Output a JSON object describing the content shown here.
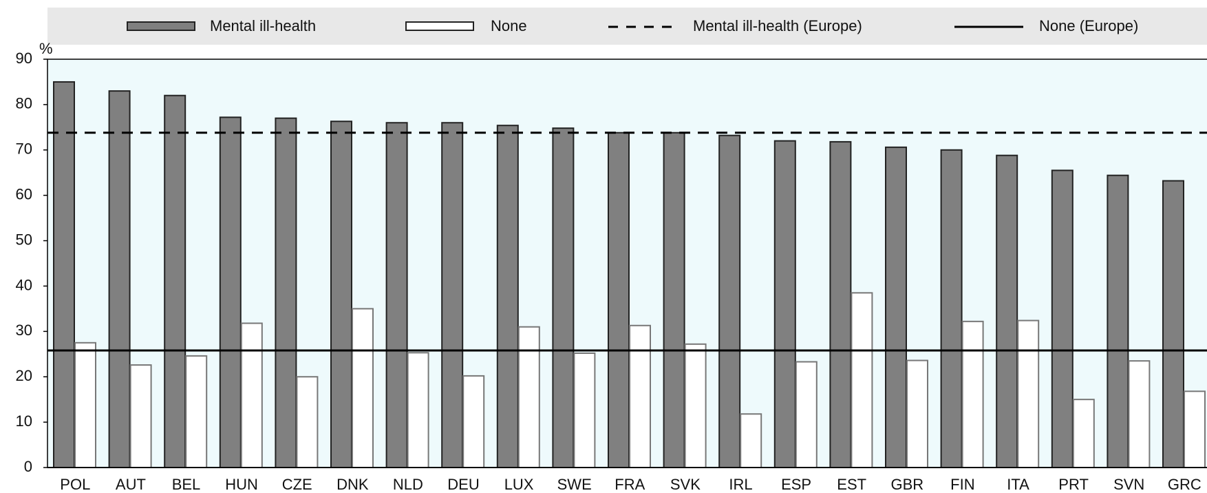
{
  "chart_data": {
    "type": "bar",
    "y_unit": "%",
    "categories": [
      "POL",
      "AUT",
      "BEL",
      "HUN",
      "CZE",
      "DNK",
      "NLD",
      "DEU",
      "LUX",
      "SWE",
      "FRA",
      "SVK",
      "IRL",
      "ESP",
      "EST",
      "GBR",
      "FIN",
      "ITA",
      "PRT",
      "SVN",
      "GRC"
    ],
    "series": [
      {
        "name": "Mental ill-health",
        "color": "#808080",
        "values": [
          85,
          83,
          82,
          77.2,
          77,
          76.3,
          76,
          76,
          75.4,
          74.8,
          73.8,
          73.8,
          73.2,
          72,
          71.8,
          70.6,
          70,
          68.8,
          65.5,
          64.4,
          63.2
        ]
      },
      {
        "name": "None",
        "color": "#ffffff",
        "values": [
          27.5,
          22.6,
          24.6,
          31.8,
          20,
          35,
          25.3,
          20.2,
          31,
          25.2,
          31.3,
          27.2,
          11.8,
          23.3,
          38.5,
          23.6,
          32.2,
          32.4,
          15,
          23.5,
          16.8
        ]
      }
    ],
    "reference_lines": [
      {
        "name": "Mental ill-health (Europe)",
        "value": 73.8,
        "style": "dashed"
      },
      {
        "name": "None (Europe)",
        "value": 25.8,
        "style": "solid"
      }
    ],
    "ylim": [
      0,
      90
    ],
    "yticks": [
      0,
      10,
      20,
      30,
      40,
      50,
      60,
      70,
      80,
      90
    ],
    "background": "#eefafc"
  }
}
